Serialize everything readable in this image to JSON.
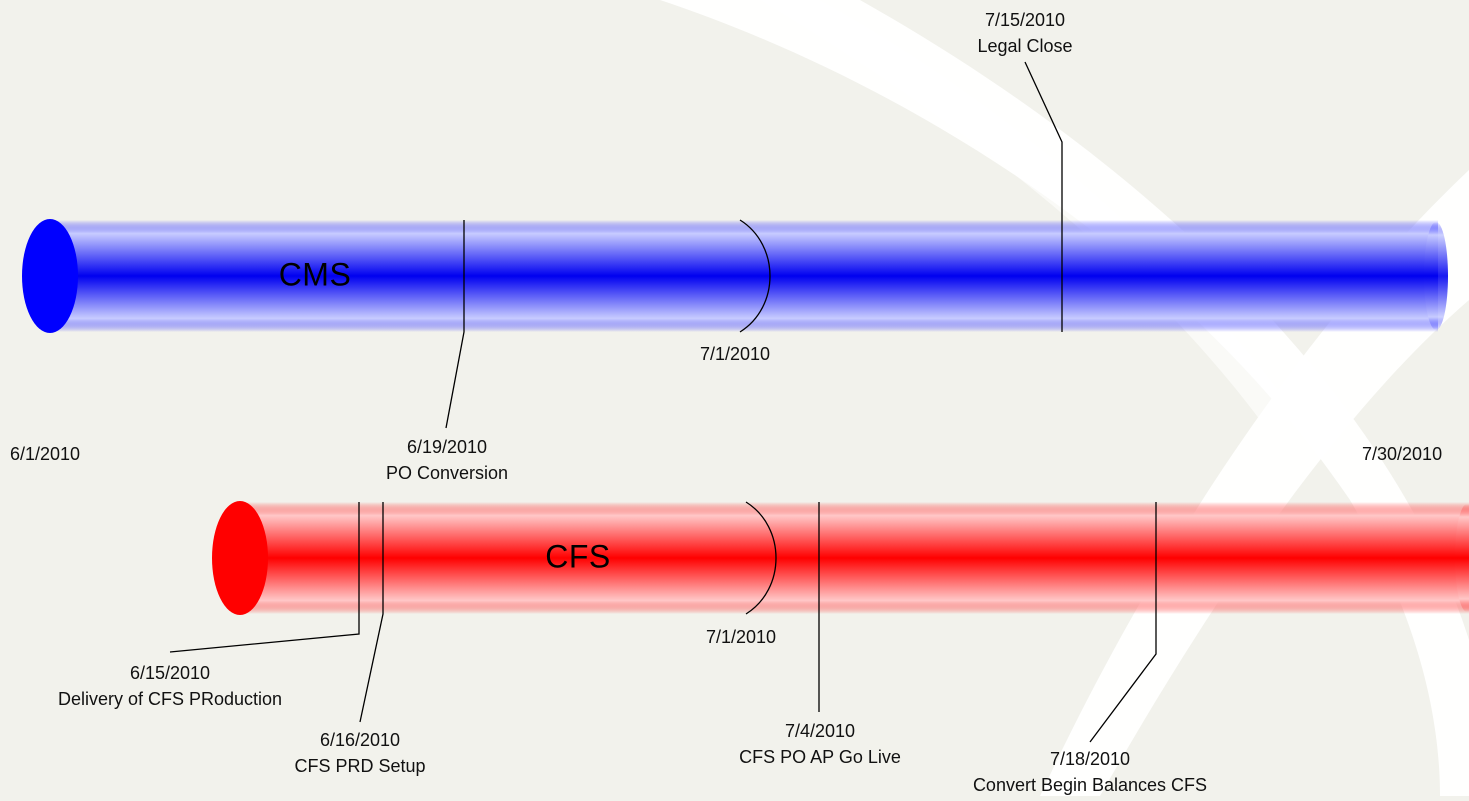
{
  "range": {
    "start": "6/1/2010",
    "end": "7/30/2010"
  },
  "tracks": [
    {
      "id": "cms",
      "label": "CMS",
      "color": "#0000ff",
      "midpoint": "7/1/2010",
      "milestones": [
        {
          "date": "6/19/2010",
          "name": "PO Conversion"
        },
        {
          "date": "7/15/2010",
          "name": "Legal Close"
        }
      ]
    },
    {
      "id": "cfs",
      "label": "CFS",
      "color": "#ff0000",
      "midpoint": "7/1/2010",
      "milestones": [
        {
          "date": "6/15/2010",
          "name": "Delivery of CFS PRoduction"
        },
        {
          "date": "6/16/2010",
          "name": "CFS PRD Setup"
        },
        {
          "date": "7/4/2010",
          "name": "CFS PO AP Go Live"
        },
        {
          "date": "7/18/2010",
          "name": "Convert Begin Balances CFS"
        }
      ]
    }
  ]
}
